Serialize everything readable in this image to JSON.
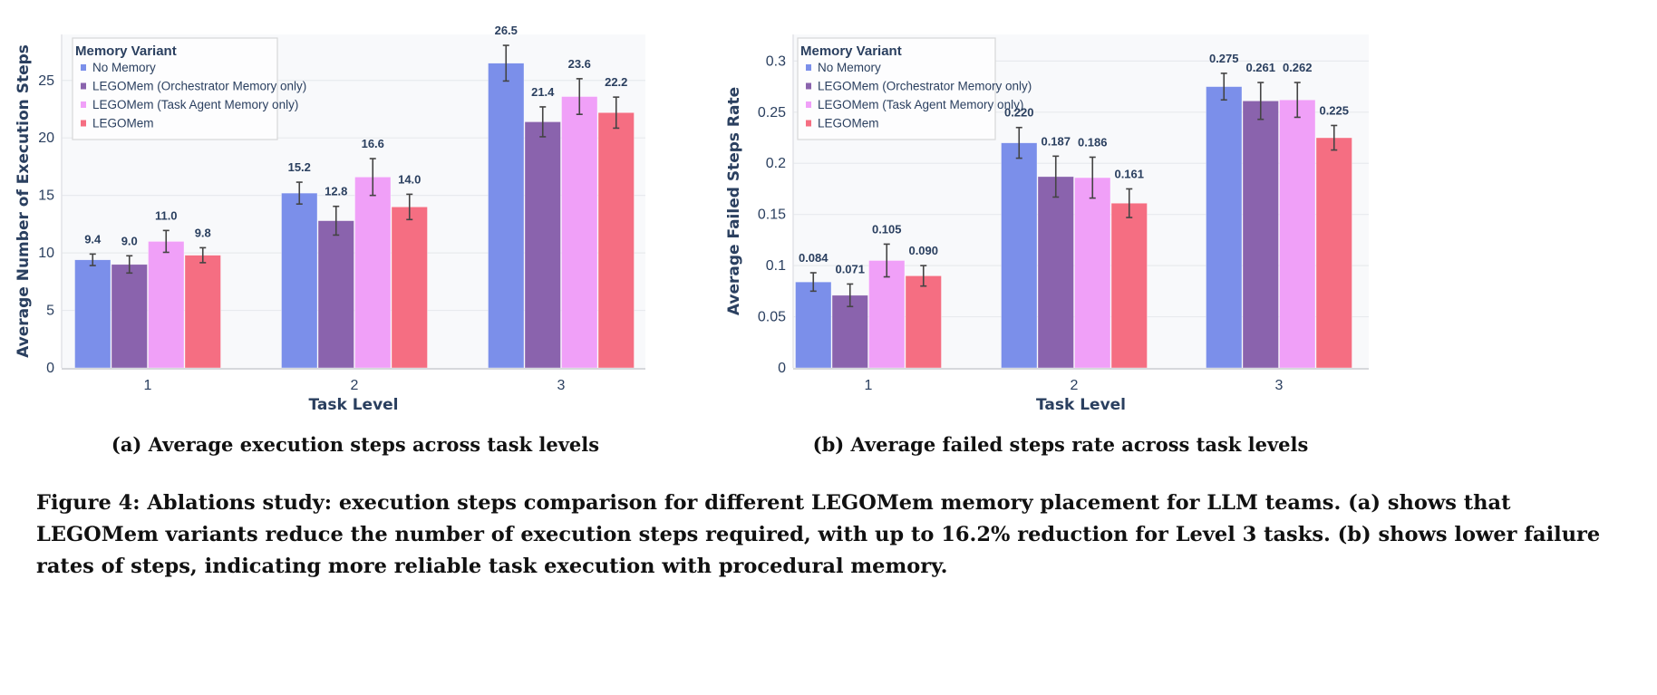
{
  "colors": {
    "No Memory": "#7b8fea",
    "LEGOMem (Orchestrator Memory only)": "#8a63ad",
    "LEGOMem (Task Agent Memory only)": "#f0a0f8",
    "LEGOMem": "#f56e82",
    "plot_bg": "#f8f9fb",
    "grid": "#e8eaee"
  },
  "chart_data": [
    {
      "type": "bar",
      "xlabel": "Task Level",
      "ylabel": "Average Number of Execution Steps",
      "categories": [
        "1",
        "2",
        "3"
      ],
      "ylim": [
        0,
        29
      ],
      "yticks": [
        0,
        5,
        10,
        15,
        20,
        25
      ],
      "grid": true,
      "legend": {
        "title": "Memory Variant",
        "placement": "top-left"
      },
      "series": [
        {
          "name": "No Memory",
          "values": [
            9.4,
            15.2,
            26.5
          ],
          "errors": [
            0.5,
            0.95,
            1.55
          ],
          "labels": [
            "9.4",
            "15.2",
            "26.5"
          ]
        },
        {
          "name": "LEGOMem (Orchestrator Memory only)",
          "values": [
            9.0,
            12.8,
            21.4
          ],
          "errors": [
            0.75,
            1.25,
            1.3
          ],
          "labels": [
            "9.0",
            "12.8",
            "21.4"
          ]
        },
        {
          "name": "LEGOMem (Task Agent Memory only)",
          "values": [
            11.0,
            16.6,
            23.6
          ],
          "errors": [
            0.95,
            1.6,
            1.55
          ],
          "labels": [
            "11.0",
            "16.6",
            "23.6"
          ]
        },
        {
          "name": "LEGOMem",
          "values": [
            9.8,
            14.0,
            22.2
          ],
          "errors": [
            0.65,
            1.1,
            1.35
          ],
          "labels": [
            "9.8",
            "14.0",
            "22.2"
          ]
        }
      ],
      "subcaption": "(a) Average execution steps across task levels"
    },
    {
      "type": "bar",
      "xlabel": "Task Level",
      "ylabel": "Average Failed Steps Rate",
      "categories": [
        "1",
        "2",
        "3"
      ],
      "ylim": [
        0,
        0.326
      ],
      "yticks": [
        0,
        0.05,
        0.1,
        0.15,
        0.2,
        0.25,
        0.3
      ],
      "grid": true,
      "legend": {
        "title": "Memory Variant",
        "placement": "top-left"
      },
      "series": [
        {
          "name": "No Memory",
          "values": [
            0.084,
            0.22,
            0.275
          ],
          "errors": [
            0.009,
            0.015,
            0.013
          ],
          "labels": [
            "0.084",
            "0.220",
            "0.275"
          ]
        },
        {
          "name": "LEGOMem (Orchestrator Memory only)",
          "values": [
            0.071,
            0.187,
            0.261
          ],
          "errors": [
            0.011,
            0.02,
            0.018
          ],
          "labels": [
            "0.071",
            "0.187",
            "0.261"
          ]
        },
        {
          "name": "LEGOMem (Task Agent Memory only)",
          "values": [
            0.105,
            0.186,
            0.262
          ],
          "errors": [
            0.016,
            0.02,
            0.017
          ],
          "labels": [
            "0.105",
            "0.186",
            "0.262"
          ]
        },
        {
          "name": "LEGOMem",
          "values": [
            0.09,
            0.161,
            0.225
          ],
          "errors": [
            0.01,
            0.014,
            0.012
          ],
          "labels": [
            "0.090",
            "0.161",
            "0.225"
          ]
        }
      ],
      "subcaption": "(b) Average failed steps rate across task levels"
    }
  ],
  "figure_caption": "Figure 4: Ablations study: execution steps comparison for different LEGOMem memory placement for LLM teams. (a) shows that LEGOMem variants reduce the number of execution steps required, with up to 16.2% reduction for Level 3 tasks. (b) shows lower failure rates of steps, indicating more reliable task execution with procedural memory."
}
